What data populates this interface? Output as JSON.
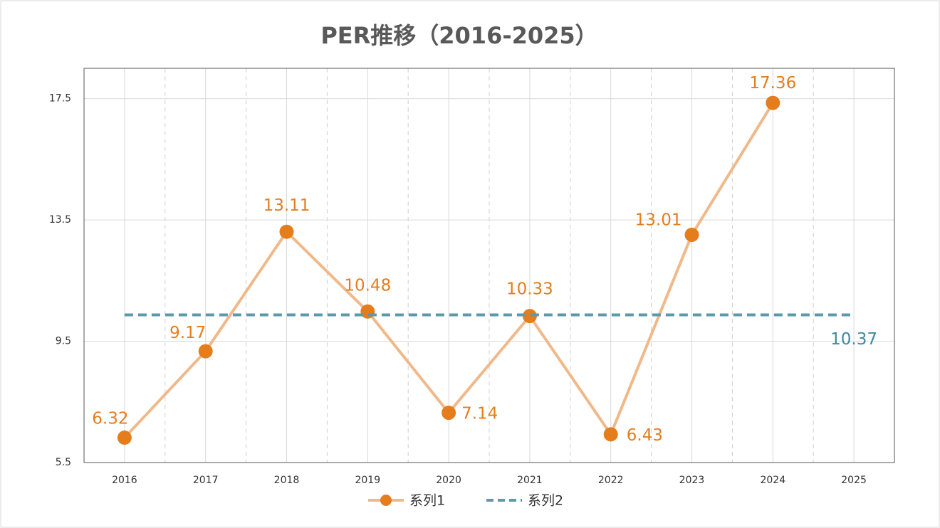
{
  "chart_data": {
    "type": "line",
    "title": "PER推移（2016-2025）",
    "categories": [
      "2016",
      "2017",
      "2018",
      "2019",
      "2020",
      "2021",
      "2022",
      "2023",
      "2024",
      "2025"
    ],
    "series": [
      {
        "name": "系列1",
        "color": "#e57d1c",
        "line_color": "#f0b98a",
        "values": [
          6.32,
          9.17,
          13.11,
          10.48,
          7.14,
          10.33,
          6.43,
          13.01,
          17.36,
          null
        ]
      },
      {
        "name": "系列2",
        "color": "#5b9aad",
        "label_color": "#3f8aa0",
        "dashed": true,
        "values": [
          10.37,
          10.37,
          10.37,
          10.37,
          10.37,
          10.37,
          10.37,
          10.37,
          10.37,
          10.37
        ]
      }
    ],
    "ylim": [
      5.5,
      18.5
    ],
    "yticks": [
      5.5,
      9.5,
      13.5,
      17.5
    ],
    "grid": true,
    "legend": "bottom"
  }
}
